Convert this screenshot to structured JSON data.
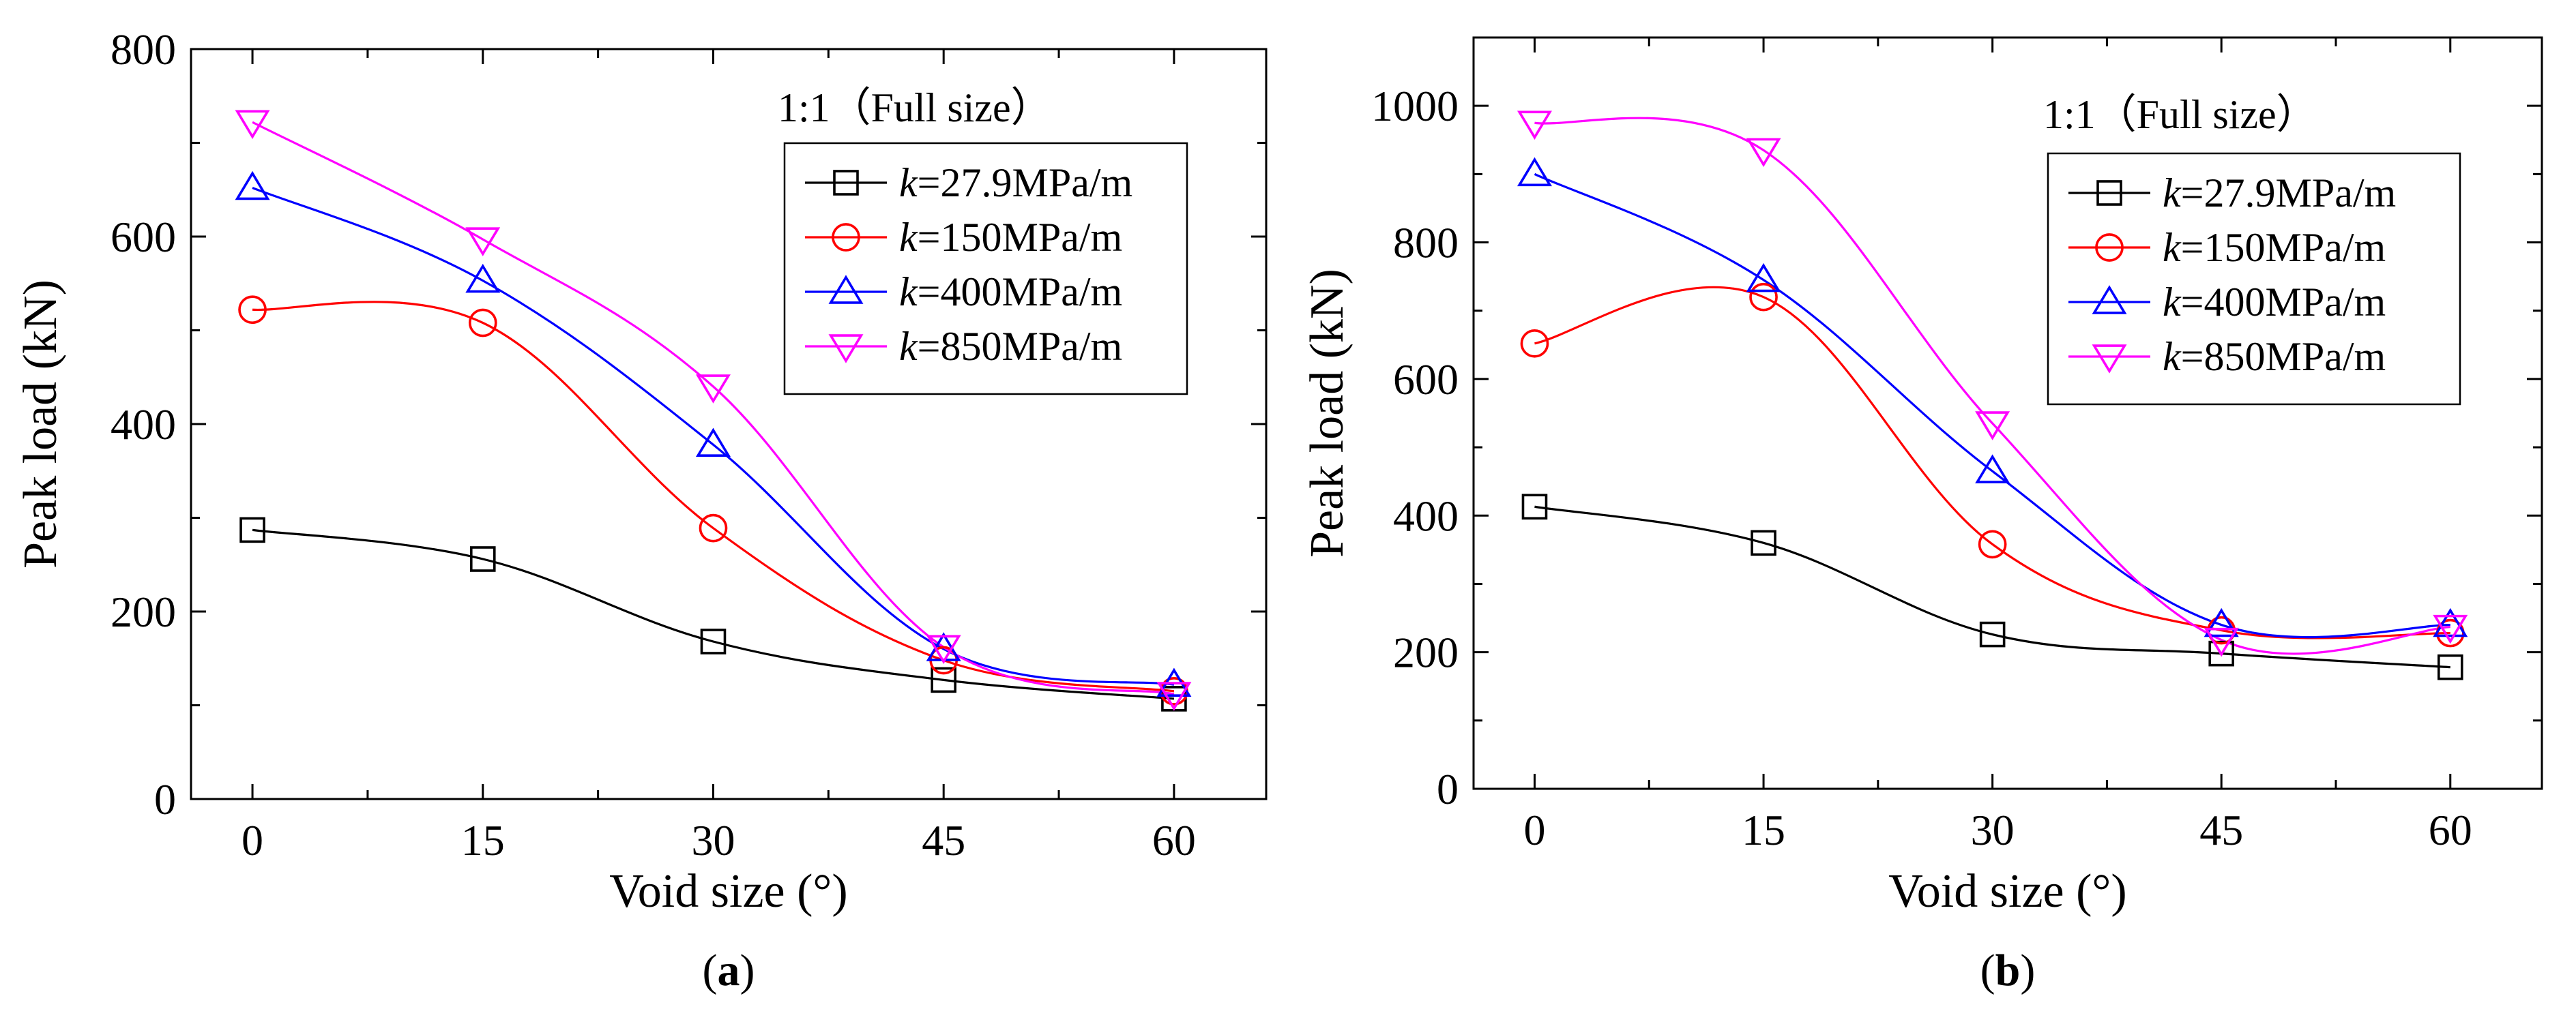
{
  "chart_data": [
    {
      "type": "line",
      "panel_label": "(a)",
      "annotation": "1:1（Full size）",
      "xlabel": "Void size (°)",
      "ylabel": "Peak load (kN)",
      "xlim": [
        -4,
        66
      ],
      "ylim": [
        0,
        800
      ],
      "x_ticks": [
        0,
        15,
        30,
        45,
        60
      ],
      "y_ticks": [
        0,
        200,
        400,
        600,
        800
      ],
      "legend_position": "top-right",
      "x": [
        0,
        15,
        30,
        45,
        60
      ],
      "series": [
        {
          "name": "k=27.9MPa/m",
          "k_symbol": "k",
          "label_rest": "=27.9MPa/m",
          "color": "#000000",
          "marker": "square",
          "values": [
            287,
            256,
            168,
            127,
            107
          ]
        },
        {
          "name": "k=150MPa/m",
          "k_symbol": "k",
          "label_rest": "=150MPa/m",
          "color": "#ff0000",
          "marker": "circle",
          "values": [
            522,
            508,
            289,
            148,
            115
          ]
        },
        {
          "name": "k=400MPa/m",
          "k_symbol": "k",
          "label_rest": "=400MPa/m",
          "color": "#0000ff",
          "marker": "triangle-up",
          "values": [
            652,
            553,
            378,
            160,
            122
          ]
        },
        {
          "name": "k=850MPa/m",
          "k_symbol": "k",
          "label_rest": "=850MPa/m",
          "color": "#ff00ff",
          "marker": "triangle-down",
          "values": [
            722,
            597,
            440,
            162,
            112
          ]
        }
      ]
    },
    {
      "type": "line",
      "panel_label": "(b)",
      "annotation": "1:1（Full size）",
      "xlabel": "Void size (°)",
      "ylabel": "Peak load (kN)",
      "xlim": [
        -4,
        66
      ],
      "ylim": [
        0,
        1100
      ],
      "x_ticks": [
        0,
        15,
        30,
        45,
        60
      ],
      "y_ticks": [
        0,
        200,
        400,
        600,
        800,
        1000
      ],
      "legend_position": "top-right",
      "x": [
        0,
        15,
        30,
        45,
        60
      ],
      "series": [
        {
          "name": "k=27.9MPa/m",
          "k_symbol": "k",
          "label_rest": "=27.9MPa/m",
          "color": "#000000",
          "marker": "square",
          "values": [
            413,
            360,
            226,
            198,
            178
          ]
        },
        {
          "name": "k=150MPa/m",
          "k_symbol": "k",
          "label_rest": "=150MPa/m",
          "color": "#ff0000",
          "marker": "circle",
          "values": [
            652,
            720,
            358,
            232,
            228
          ]
        },
        {
          "name": "k=400MPa/m",
          "k_symbol": "k",
          "label_rest": "=400MPa/m",
          "color": "#0000ff",
          "marker": "triangle-up",
          "values": [
            900,
            745,
            465,
            240,
            240
          ]
        },
        {
          "name": "k=850MPa/m",
          "k_symbol": "k",
          "label_rest": "=850MPa/m",
          "color": "#ff00ff",
          "marker": "triangle-down",
          "values": [
            975,
            935,
            535,
            218,
            237
          ]
        }
      ]
    }
  ]
}
